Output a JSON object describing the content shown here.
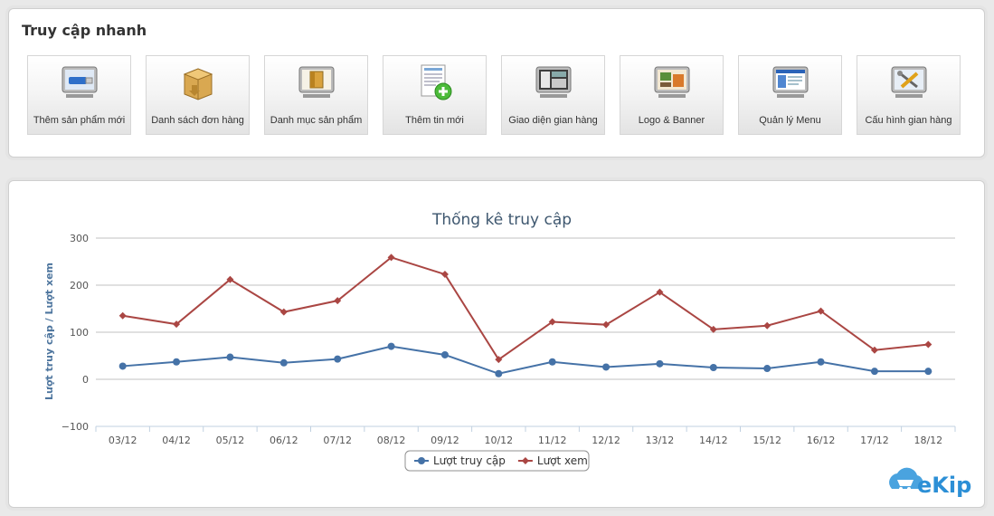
{
  "quick_access": {
    "title": "Truy cập nhanh",
    "items": [
      {
        "label": "Thêm sản phẩm mới",
        "icon": "usb-drive-icon"
      },
      {
        "label": "Danh sách đơn hàng",
        "icon": "package-box-icon"
      },
      {
        "label": "Danh mục sản phẩm",
        "icon": "folder-icon"
      },
      {
        "label": "Thêm tin mới",
        "icon": "add-news-icon"
      },
      {
        "label": "Giao diện gian hàng",
        "icon": "store-layout-icon"
      },
      {
        "label": "Logo & Banner",
        "icon": "logo-banner-icon"
      },
      {
        "label": "Quản lý Menu",
        "icon": "menu-window-icon"
      },
      {
        "label": "Cấu hình gian hàng",
        "icon": "tools-icon"
      }
    ]
  },
  "chart_data": {
    "type": "line",
    "title": "Thống kê truy cập",
    "ylabel": "Lượt truy cập / Lượt xem",
    "xlabel": "",
    "ylim": [
      -100,
      300
    ],
    "yticks": [
      -100,
      0,
      100,
      200,
      300
    ],
    "grid": true,
    "legend": "bottom",
    "categories": [
      "03/12",
      "04/12",
      "05/12",
      "06/12",
      "07/12",
      "08/12",
      "09/12",
      "10/12",
      "11/12",
      "12/12",
      "13/12",
      "14/12",
      "15/12",
      "16/12",
      "17/12",
      "18/12"
    ],
    "series": [
      {
        "name": "Lượt truy cập",
        "color": "#4572a7",
        "marker": "circle",
        "values": [
          28,
          37,
          47,
          35,
          43,
          70,
          52,
          12,
          37,
          26,
          33,
          25,
          23,
          37,
          17,
          17
        ]
      },
      {
        "name": "Lượt xem",
        "color": "#aa4643",
        "marker": "diamond",
        "values": [
          135,
          117,
          212,
          143,
          167,
          259,
          223,
          42,
          122,
          116,
          185,
          106,
          114,
          145,
          62,
          74
        ]
      }
    ]
  },
  "brand": {
    "text": "eKip"
  }
}
